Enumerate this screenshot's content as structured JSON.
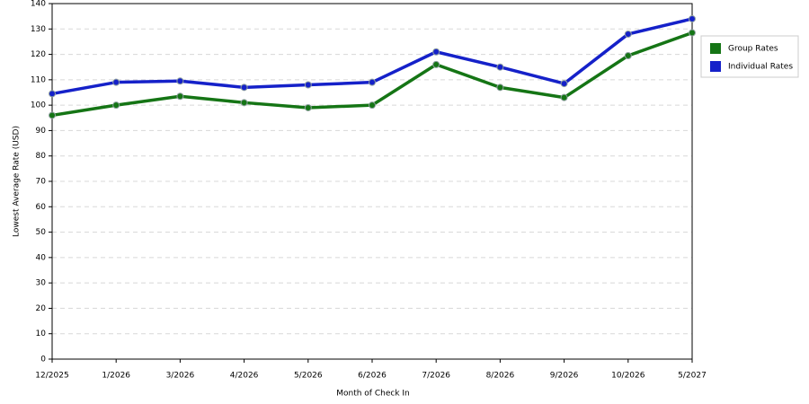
{
  "chart_data": {
    "type": "line",
    "x_label": "Month of Check In",
    "y_label": "Lowest Average Rate (USD)",
    "categories": [
      "12/2025",
      "1/2026",
      "3/2026",
      "4/2026",
      "5/2026",
      "6/2026",
      "7/2026",
      "8/2026",
      "9/2026",
      "10/2026",
      "5/2027"
    ],
    "series": [
      {
        "name": "Group Rates",
        "color": "#157515",
        "values": [
          96,
          100,
          103.5,
          101,
          99,
          100,
          116,
          107,
          103,
          119.5,
          128.5
        ]
      },
      {
        "name": "Individual Rates",
        "color": "#1521c9",
        "values": [
          104.5,
          109,
          109.5,
          107,
          108,
          109,
          121,
          115,
          108.5,
          128,
          134
        ]
      }
    ],
    "ylim": [
      0,
      140
    ],
    "yticks": [
      0,
      10,
      20,
      30,
      40,
      50,
      60,
      70,
      80,
      90,
      100,
      110,
      120,
      130,
      140
    ],
    "grid": true,
    "legend": "right"
  }
}
